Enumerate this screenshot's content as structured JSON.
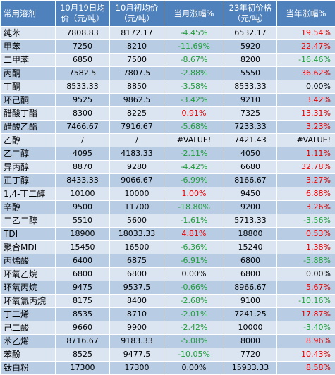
{
  "headers": {
    "solvent": "常用溶剂",
    "oct19": "10月19日均价（元/吨）",
    "oct_start": "10月初均价（元/吨）",
    "month_change": "当月涨幅%",
    "year_start": "23年初价格（元/吨）",
    "year_change": "当年涨幅%"
  },
  "colors": {
    "header_bg": "#4f81bd",
    "row_light": "#dbe5f1",
    "row_dark": "#b8cce4",
    "up": "#e00000",
    "down": "#1e9e3a"
  },
  "rows": [
    {
      "name": "纯苯",
      "oct19": "7808.83",
      "oct_start": "8172.17",
      "month": "-4.45%",
      "month_s": "neg",
      "year_start": "6532.17",
      "year": "19.54%",
      "year_s": "pos"
    },
    {
      "name": "甲苯",
      "oct19": "7250",
      "oct_start": "8210",
      "month": "-11.69%",
      "month_s": "neg",
      "year_start": "5920",
      "year": "22.47%",
      "year_s": "pos"
    },
    {
      "name": "二甲苯",
      "oct19": "6850",
      "oct_start": "7500",
      "month": "-8.67%",
      "month_s": "neg",
      "year_start": "8200",
      "year": "-16.46%",
      "year_s": "neg"
    },
    {
      "name": "丙酮",
      "oct19": "7582.5",
      "oct_start": "7807.5",
      "month": "-2.88%",
      "month_s": "neg",
      "year_start": "5550",
      "year": "36.62%",
      "year_s": "pos"
    },
    {
      "name": "丁酮",
      "oct19": "8533.33",
      "oct_start": "8850",
      "month": "-3.58%",
      "month_s": "neg",
      "year_start": "8533.33",
      "year": "0.00%",
      "year_s": "zero"
    },
    {
      "name": "环己酮",
      "oct19": "9525",
      "oct_start": "9862.5",
      "month": "-3.42%",
      "month_s": "neg",
      "year_start": "9210",
      "year": "3.42%",
      "year_s": "pos"
    },
    {
      "name": "醋酸丁酯",
      "oct19": "8300",
      "oct_start": "8225",
      "month": "0.91%",
      "month_s": "pos",
      "year_start": "7325",
      "year": "13.31%",
      "year_s": "pos"
    },
    {
      "name": "醋酸乙酯",
      "oct19": "7466.67",
      "oct_start": "7916.67",
      "month": "-5.68%",
      "month_s": "neg",
      "year_start": "7233.33",
      "year": "3.23%",
      "year_s": "pos"
    },
    {
      "name": "乙醇",
      "oct19": "/",
      "oct_start": "/",
      "month": "#VALUE!",
      "month_s": "zero",
      "year_start": "7421.43",
      "year": "#VALUE!",
      "year_s": "zero"
    },
    {
      "name": "乙二醇",
      "oct19": "4095",
      "oct_start": "4183.33",
      "month": "-2.11%",
      "month_s": "neg",
      "year_start": "4050",
      "year": "1.11%",
      "year_s": "pos"
    },
    {
      "name": "异丙醇",
      "oct19": "8870",
      "oct_start": "9280",
      "month": "-4.42%",
      "month_s": "neg",
      "year_start": "6680",
      "year": "32.78%",
      "year_s": "pos"
    },
    {
      "name": "正丁醇",
      "oct19": "8433.33",
      "oct_start": "9066.67",
      "month": "-6.99%",
      "month_s": "neg",
      "year_start": "8166.67",
      "year": "3.27%",
      "year_s": "pos"
    },
    {
      "name": "1,4-丁二醇",
      "oct19": "10100",
      "oct_start": "10000",
      "month": "1.00%",
      "month_s": "pos",
      "year_start": "9450",
      "year": "6.88%",
      "year_s": "pos"
    },
    {
      "name": "辛醇",
      "oct19": "9500",
      "oct_start": "11700",
      "month": "-18.80%",
      "month_s": "neg",
      "year_start": "9200",
      "year": "3.26%",
      "year_s": "pos"
    },
    {
      "name": "二乙二醇",
      "oct19": "5510",
      "oct_start": "5600",
      "month": "-1.61%",
      "month_s": "neg",
      "year_start": "5713.33",
      "year": "-3.56%",
      "year_s": "neg"
    },
    {
      "name": "TDI",
      "oct19": "18900",
      "oct_start": "18033.33",
      "month": "4.81%",
      "month_s": "pos",
      "year_start": "18800",
      "year": "0.53%",
      "year_s": "pos"
    },
    {
      "name": "聚合MDI",
      "oct19": "15450",
      "oct_start": "16500",
      "month": "-6.36%",
      "month_s": "neg",
      "year_start": "15240",
      "year": "1.38%",
      "year_s": "pos"
    },
    {
      "name": "丙烯酸",
      "oct19": "6400",
      "oct_start": "6875",
      "month": "-6.91%",
      "month_s": "neg",
      "year_start": "6800",
      "year": "-5.88%",
      "year_s": "neg"
    },
    {
      "name": "环氧乙烷",
      "oct19": "6800",
      "oct_start": "6800",
      "month": "0.00%",
      "month_s": "zero",
      "year_start": "6800",
      "year": "0.00%",
      "year_s": "zero"
    },
    {
      "name": "环氧丙烷",
      "oct19": "9475",
      "oct_start": "9537.5",
      "month": "-0.66%",
      "month_s": "neg",
      "year_start": "8966.67",
      "year": "5.67%",
      "year_s": "pos"
    },
    {
      "name": "环氧氯丙烷",
      "oct19": "8175",
      "oct_start": "8400",
      "month": "-2.68%",
      "month_s": "neg",
      "year_start": "9100",
      "year": "-10.16%",
      "year_s": "neg"
    },
    {
      "name": "丁二烯",
      "oct19": "8535",
      "oct_start": "8710",
      "month": "-2.01%",
      "month_s": "neg",
      "year_start": "7241.25",
      "year": "17.87%",
      "year_s": "pos"
    },
    {
      "name": "己二酸",
      "oct19": "9660",
      "oct_start": "9900",
      "month": "-2.42%",
      "month_s": "neg",
      "year_start": "10000",
      "year": "-3.40%",
      "year_s": "neg"
    },
    {
      "name": "苯乙烯",
      "oct19": "8716.67",
      "oct_start": "9183.33",
      "month": "-5.08%",
      "month_s": "neg",
      "year_start": "8000",
      "year": "8.96%",
      "year_s": "pos"
    },
    {
      "name": "苯酚",
      "oct19": "8525",
      "oct_start": "9477.5",
      "month": "-10.05%",
      "month_s": "neg",
      "year_start": "7720",
      "year": "10.43%",
      "year_s": "pos"
    },
    {
      "name": "钛白粉",
      "oct19": "17300",
      "oct_start": "17300",
      "month": "0.00%",
      "month_s": "zero",
      "year_start": "15933.33",
      "year": "8.58%",
      "year_s": "pos"
    }
  ]
}
